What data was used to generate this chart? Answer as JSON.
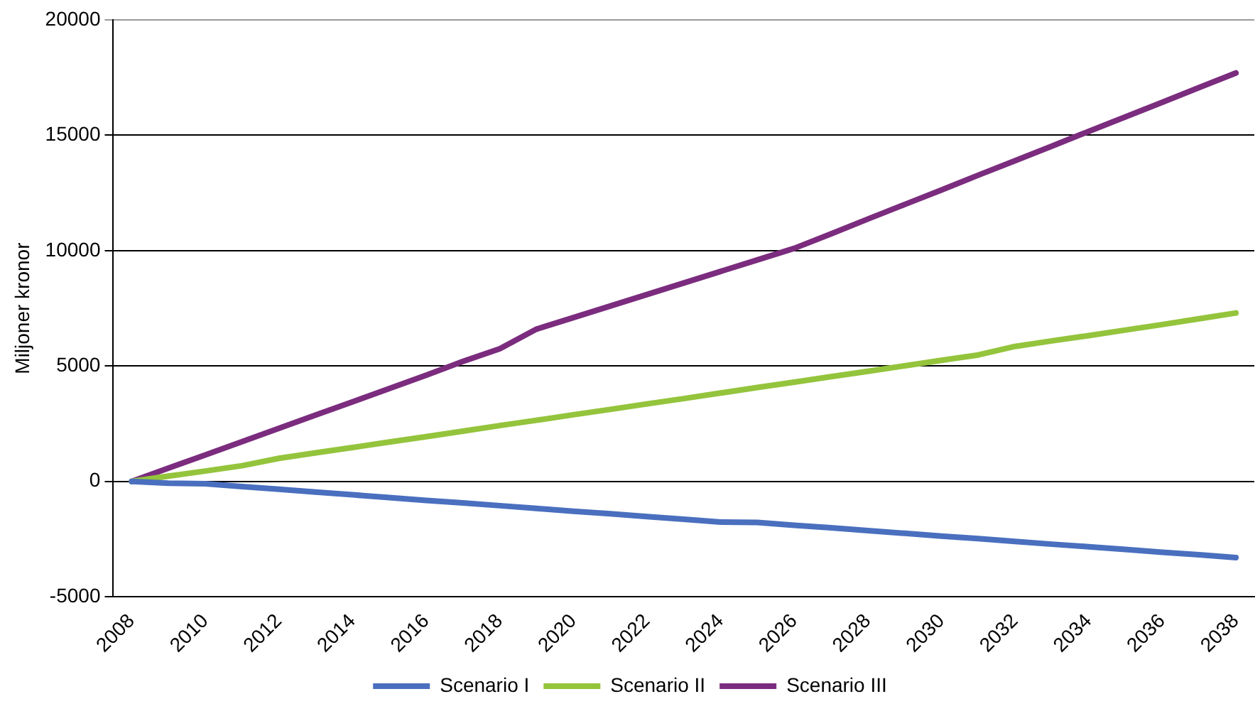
{
  "chart_data": {
    "type": "line",
    "ylabel": "Miljoner kronor",
    "categories": [
      "2008",
      null,
      "2010",
      null,
      "2012",
      null,
      "2014",
      null,
      "2016",
      null,
      "2018",
      null,
      "2020",
      null,
      "2022",
      null,
      "2024",
      null,
      "2026",
      null,
      "2028",
      null,
      "2030",
      null,
      "2032",
      null,
      "2034",
      null,
      "2036",
      null,
      "2038"
    ],
    "series": [
      {
        "name": "Scenario I",
        "color": "#4a6fbf",
        "values": [
          0,
          -80,
          -100,
          -220,
          -340,
          -460,
          -580,
          -700,
          -820,
          -930,
          -1050,
          -1170,
          -1290,
          -1400,
          -1520,
          -1640,
          -1760,
          -1780,
          -1900,
          -2010,
          -2130,
          -2250,
          -2370,
          -2480,
          -2600,
          -2720,
          -2830,
          -2950,
          -3070,
          -3180,
          -3300
        ]
      },
      {
        "name": "Scenario II",
        "color": "#94c43c",
        "values": [
          0,
          230,
          450,
          680,
          1000,
          1240,
          1470,
          1710,
          1940,
          2180,
          2420,
          2650,
          2890,
          3120,
          3360,
          3590,
          3830,
          4070,
          4300,
          4540,
          4770,
          5010,
          5250,
          5480,
          5850,
          6090,
          6320,
          6560,
          6800,
          7050,
          7300
        ]
      },
      {
        "name": "Scenario III",
        "color": "#7b2c7e",
        "values": [
          0,
          575,
          1150,
          1725,
          2300,
          2875,
          3450,
          4025,
          4600,
          5200,
          5750,
          6600,
          7100,
          7600,
          8100,
          8600,
          9100,
          9600,
          10100,
          10730,
          11370,
          12000,
          12630,
          13270,
          13900,
          14530,
          15170,
          15800,
          16430,
          17070,
          17700
        ]
      }
    ],
    "ylim": [
      -5000,
      20000
    ],
    "yticks": [
      -5000,
      0,
      5000,
      10000,
      15000,
      20000
    ],
    "grid": "y",
    "legend": "bottom",
    "marker": "none",
    "line_style": "solid"
  }
}
